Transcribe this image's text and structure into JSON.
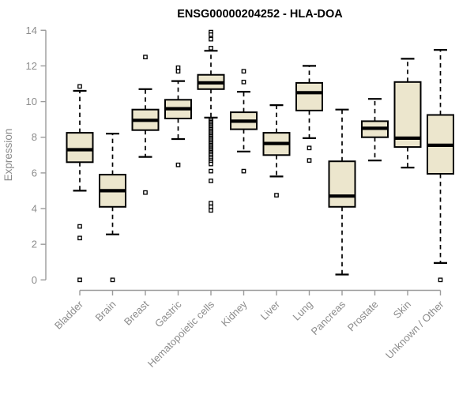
{
  "chart_data": {
    "type": "boxplot",
    "title": "ENSG00000204252 - HLA-DOA",
    "ylabel": "Expression",
    "xlabel": "",
    "ylim": [
      0,
      14
    ],
    "yticks": [
      0,
      2,
      4,
      6,
      8,
      10,
      12,
      14
    ],
    "grid": false,
    "legend_position": "none",
    "categories": [
      "Bladder",
      "Brain",
      "Breast",
      "Gastric",
      "Hematopoietic cells",
      "Kidney",
      "Liver",
      "Lung",
      "Pancreas",
      "Prostate",
      "Skin",
      "Unknown / Other"
    ],
    "series": [
      {
        "name": "Bladder",
        "whisker_low": 5.0,
        "q1": 6.6,
        "median": 7.3,
        "q3": 8.25,
        "whisker_high": 10.6,
        "outliers": [
          10.85,
          3.0,
          2.35,
          0
        ]
      },
      {
        "name": "Brain",
        "whisker_low": 2.55,
        "q1": 4.1,
        "median": 5.0,
        "q3": 5.9,
        "whisker_high": 8.2,
        "outliers": [
          0
        ]
      },
      {
        "name": "Breast",
        "whisker_low": 6.9,
        "q1": 8.4,
        "median": 8.95,
        "q3": 9.55,
        "whisker_high": 10.7,
        "outliers": [
          12.5,
          4.9
        ]
      },
      {
        "name": "Gastric",
        "whisker_low": 7.9,
        "q1": 9.05,
        "median": 9.6,
        "q3": 10.1,
        "whisker_high": 11.15,
        "outliers": [
          11.9,
          11.7,
          6.45
        ]
      },
      {
        "name": "Hematopoietic cells",
        "whisker_low": 9.1,
        "q1": 10.7,
        "median": 11.05,
        "q3": 11.5,
        "whisker_high": 12.85,
        "outliers": [
          13.9,
          13.75,
          13.5,
          13.0,
          9.0,
          8.92,
          8.84,
          8.76,
          8.68,
          8.6,
          8.52,
          8.44,
          8.36,
          8.28,
          8.2,
          8.12,
          8.04,
          7.96,
          7.88,
          7.8,
          7.72,
          7.64,
          7.56,
          7.48,
          7.4,
          7.32,
          7.24,
          7.16,
          7.08,
          7.0,
          6.9,
          6.8,
          6.7,
          6.6,
          6.5,
          6.1,
          5.55,
          4.3,
          4.1,
          3.9
        ]
      },
      {
        "name": "Kidney",
        "whisker_low": 7.2,
        "q1": 8.45,
        "median": 8.9,
        "q3": 9.4,
        "whisker_high": 10.55,
        "outliers": [
          11.7,
          11.1,
          6.1
        ]
      },
      {
        "name": "Liver",
        "whisker_low": 5.8,
        "q1": 7.0,
        "median": 7.65,
        "q3": 8.25,
        "whisker_high": 9.8,
        "outliers": [
          4.75
        ]
      },
      {
        "name": "Lung",
        "whisker_low": 7.95,
        "q1": 9.5,
        "median": 10.5,
        "q3": 11.05,
        "whisker_high": 12.0,
        "outliers": [
          7.4,
          6.7
        ]
      },
      {
        "name": "Pancreas",
        "whisker_low": 0.3,
        "q1": 4.1,
        "median": 4.7,
        "q3": 6.65,
        "whisker_high": 9.55,
        "outliers": []
      },
      {
        "name": "Prostate",
        "whisker_low": 6.7,
        "q1": 8.0,
        "median": 8.5,
        "q3": 8.9,
        "whisker_high": 10.15,
        "outliers": []
      },
      {
        "name": "Skin",
        "whisker_low": 6.3,
        "q1": 7.45,
        "median": 7.95,
        "q3": 11.1,
        "whisker_high": 12.4,
        "outliers": []
      },
      {
        "name": "Unknown / Other",
        "whisker_low": 0.95,
        "q1": 5.95,
        "median": 7.55,
        "q3": 9.25,
        "whisker_high": 12.9,
        "outliers": [
          0
        ]
      }
    ],
    "style": {
      "box_fill": "#ECE6CD",
      "box_border": "#000000",
      "median_color": "#000000",
      "whisker_color": "#000000",
      "outlier_color": "#000000",
      "axis_color": "#9b9b9b",
      "tick_label_color": "#8c8c8c",
      "title_color": "#000000",
      "background": "#ffffff"
    }
  }
}
